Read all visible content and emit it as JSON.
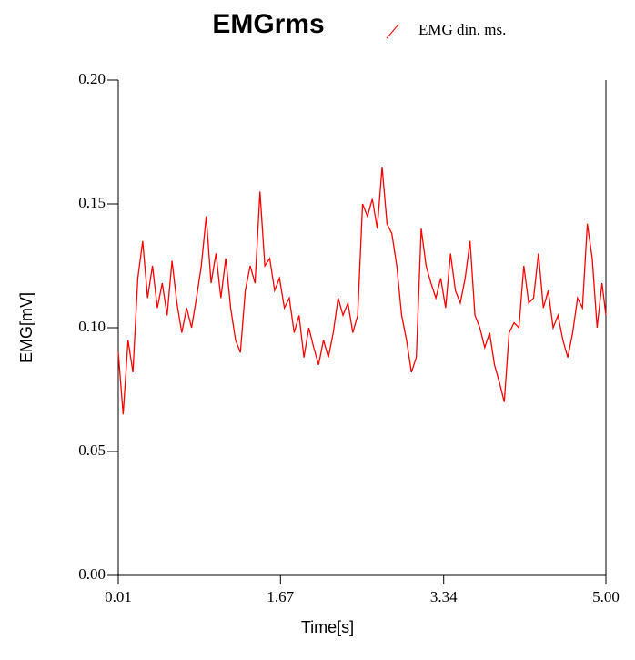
{
  "chart_data": {
    "type": "line",
    "title": "EMGrms",
    "x_label": "Time[s]",
    "y_label": "EMG[mV]",
    "x": [
      0.01,
      0.06,
      0.11,
      0.16,
      0.21,
      0.26,
      0.31,
      0.36,
      0.41,
      0.46,
      0.51,
      0.56,
      0.61,
      0.66,
      0.71,
      0.76,
      0.81,
      0.86,
      0.91,
      0.96,
      1.01,
      1.06,
      1.11,
      1.16,
      1.21,
      1.26,
      1.31,
      1.36,
      1.41,
      1.46,
      1.51,
      1.56,
      1.61,
      1.66,
      1.71,
      1.76,
      1.81,
      1.86,
      1.91,
      1.96,
      2.01,
      2.06,
      2.11,
      2.16,
      2.21,
      2.26,
      2.31,
      2.36,
      2.41,
      2.46,
      2.51,
      2.56,
      2.61,
      2.66,
      2.71,
      2.76,
      2.81,
      2.86,
      2.91,
      2.96,
      3.01,
      3.06,
      3.11,
      3.16,
      3.21,
      3.26,
      3.31,
      3.36,
      3.41,
      3.46,
      3.51,
      3.56,
      3.61,
      3.66,
      3.71,
      3.76,
      3.81,
      3.86,
      3.91,
      3.96,
      4.01,
      4.06,
      4.11,
      4.16,
      4.21,
      4.26,
      4.31,
      4.36,
      4.41,
      4.46,
      4.51,
      4.56,
      4.61,
      4.66,
      4.71,
      4.76,
      4.81,
      4.86,
      4.91,
      4.96,
      5.0
    ],
    "series": [
      {
        "name": "EMG din. ms.",
        "color": "#ff0000",
        "values": [
          0.09,
          0.065,
          0.095,
          0.082,
          0.12,
          0.135,
          0.112,
          0.125,
          0.108,
          0.118,
          0.105,
          0.127,
          0.11,
          0.098,
          0.108,
          0.1,
          0.112,
          0.125,
          0.145,
          0.118,
          0.13,
          0.112,
          0.128,
          0.108,
          0.095,
          0.09,
          0.115,
          0.125,
          0.118,
          0.155,
          0.125,
          0.128,
          0.115,
          0.12,
          0.108,
          0.112,
          0.098,
          0.105,
          0.088,
          0.1,
          0.092,
          0.085,
          0.095,
          0.088,
          0.098,
          0.112,
          0.105,
          0.11,
          0.098,
          0.105,
          0.15,
          0.145,
          0.152,
          0.14,
          0.165,
          0.142,
          0.138,
          0.125,
          0.105,
          0.095,
          0.082,
          0.088,
          0.14,
          0.125,
          0.118,
          0.112,
          0.12,
          0.108,
          0.13,
          0.115,
          0.11,
          0.12,
          0.135,
          0.105,
          0.1,
          0.092,
          0.098,
          0.085,
          0.078,
          0.07,
          0.098,
          0.102,
          0.1,
          0.125,
          0.11,
          0.112,
          0.13,
          0.108,
          0.115,
          0.1,
          0.105,
          0.095,
          0.088,
          0.098,
          0.112,
          0.108,
          0.142,
          0.128,
          0.1,
          0.118,
          0.105
        ]
      }
    ],
    "xlim": [
      0.01,
      5.0
    ],
    "xticks": [
      0.01,
      1.67,
      3.34,
      {
        "value": 5.0,
        "label": "5.00"
      }
    ],
    "ylim": [
      0,
      0.2
    ],
    "yticks": [
      {
        "value": 0,
        "label": "0.00"
      },
      0.05,
      {
        "value": 0.1,
        "label": "0.10"
      },
      0.15,
      {
        "value": 0.2,
        "label": "0.20"
      }
    ]
  }
}
